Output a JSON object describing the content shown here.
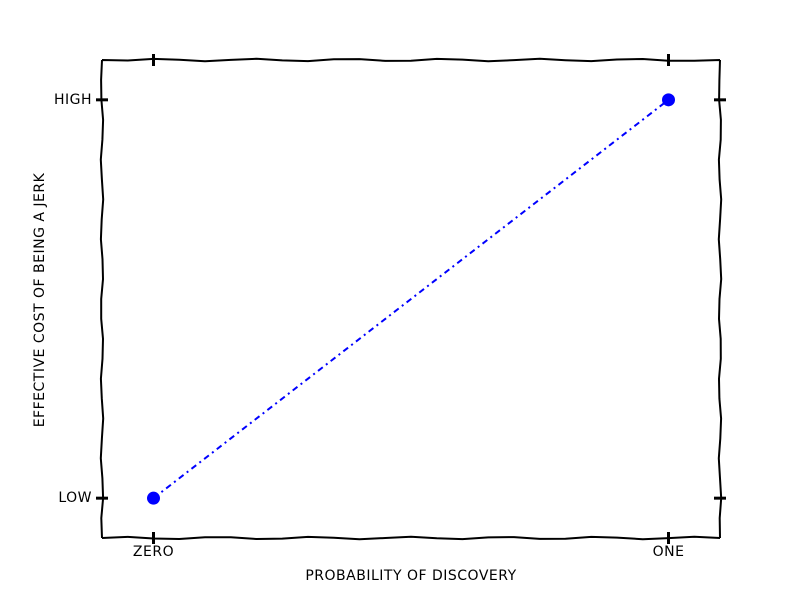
{
  "chart_data": {
    "type": "line",
    "xlabel": "PROBABILITY OF DISCOVERY",
    "ylabel": "EFFECTIVE COST OF BEING A JERK",
    "x": [
      0,
      1
    ],
    "values": [
      0,
      1
    ],
    "color": "#0000ff",
    "xlim": [
      -0.1,
      1.1
    ],
    "ylim": [
      -0.1,
      1.1
    ],
    "xticks": [
      {
        "value": 0,
        "label": "ZERO"
      },
      {
        "value": 1,
        "label": "ONE"
      }
    ],
    "yticks": [
      {
        "value": 0,
        "label": "LOW"
      },
      {
        "value": 1,
        "label": "HIGH"
      }
    ]
  }
}
